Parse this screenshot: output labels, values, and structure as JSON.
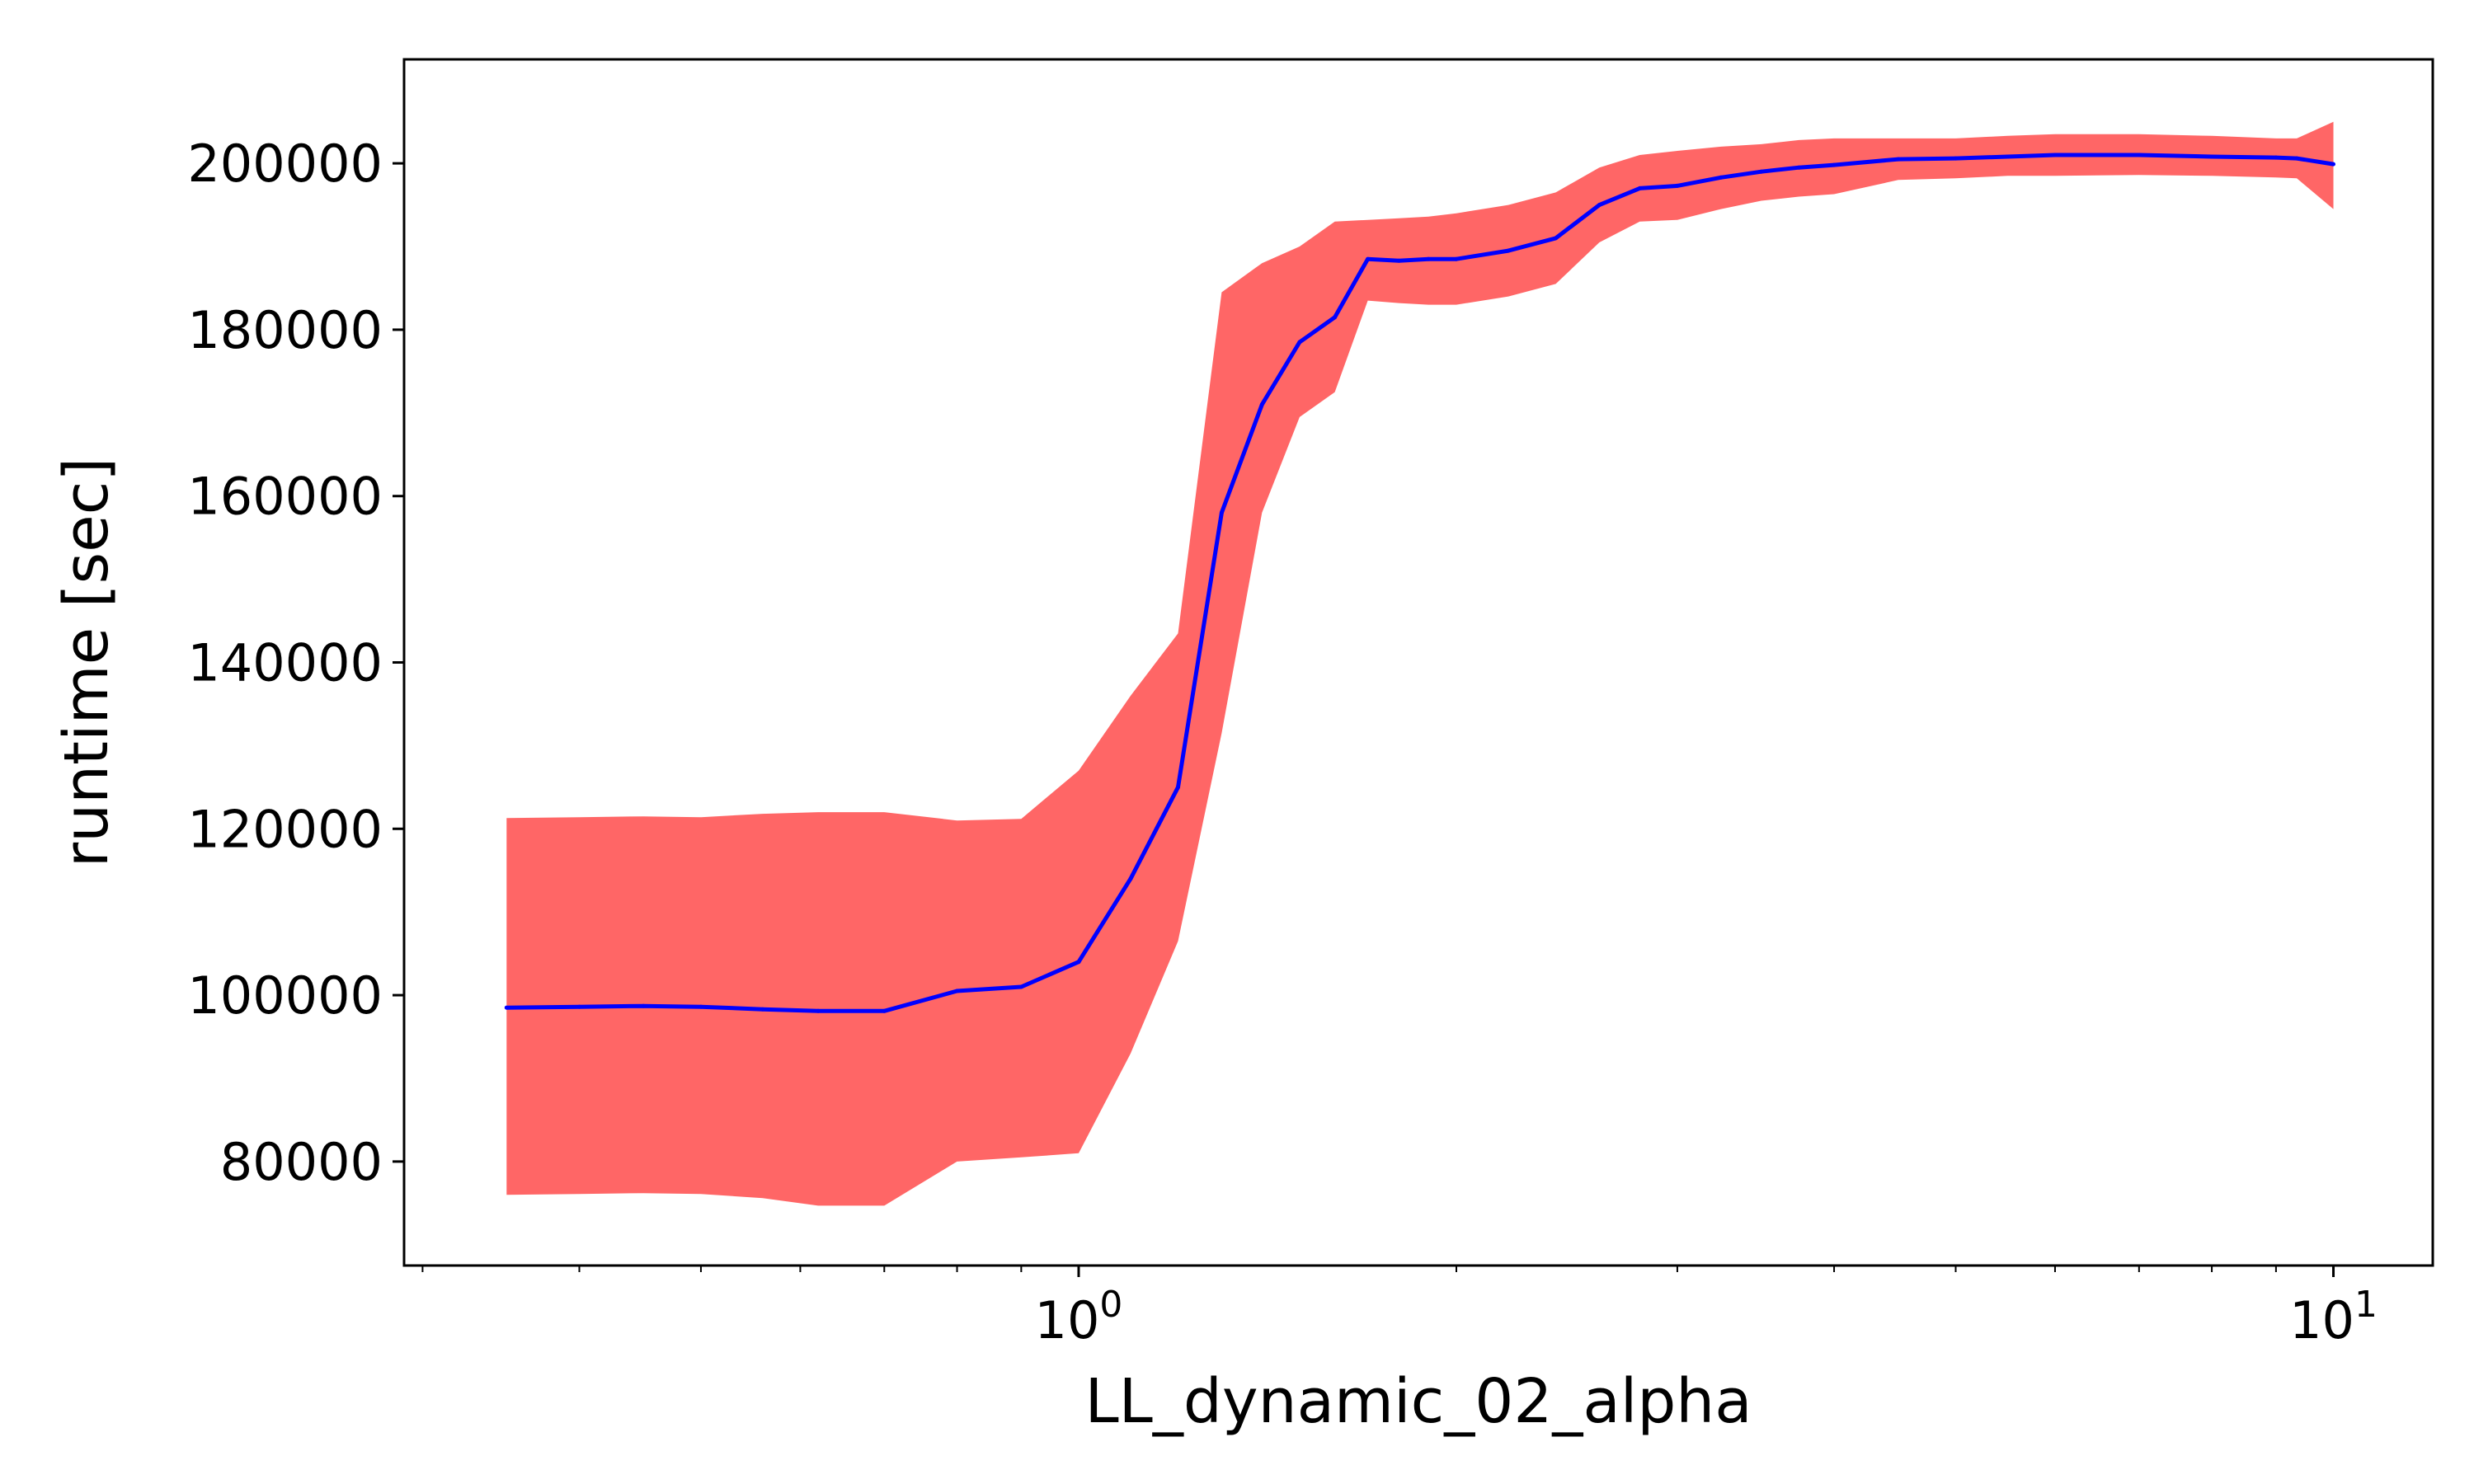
{
  "chart_data": {
    "type": "line",
    "title": "",
    "xlabel": "LL_dynamic_02_alpha",
    "ylabel": "runtime [sec]",
    "xscale": "log",
    "xlim": [
      0.29,
      12
    ],
    "ylim": [
      67500,
      212500
    ],
    "x_ticks": [
      {
        "value": 1,
        "base": "10",
        "exp": "0"
      },
      {
        "value": 10,
        "base": "10",
        "exp": "1"
      }
    ],
    "y_ticks": [
      {
        "value": 80000,
        "label": "80000"
      },
      {
        "value": 100000,
        "label": "100000"
      },
      {
        "value": 120000,
        "label": "120000"
      },
      {
        "value": 140000,
        "label": "140000"
      },
      {
        "value": 160000,
        "label": "160000"
      },
      {
        "value": 180000,
        "label": "180000"
      },
      {
        "value": 200000,
        "label": "200000"
      }
    ],
    "grid": false,
    "series": [
      {
        "color": "#0000ff",
        "band_color": "#ff6666",
        "x": [
          0.35,
          0.4,
          0.45,
          0.5,
          0.56,
          0.62,
          0.7,
          0.8,
          0.9,
          1.0,
          1.1,
          1.2,
          1.3,
          1.4,
          1.5,
          1.6,
          1.7,
          1.8,
          1.9,
          2.0,
          2.2,
          2.4,
          2.6,
          2.8,
          3.0,
          3.25,
          3.5,
          3.75,
          4.0,
          4.5,
          5.0,
          5.5,
          6.0,
          7.0,
          8.0,
          9.0,
          9.35,
          10.0
        ],
        "y": [
          98500,
          98600,
          98700,
          98600,
          98300,
          98100,
          98100,
          100500,
          101000,
          104000,
          114000,
          125000,
          158000,
          171000,
          178500,
          181500,
          188500,
          188300,
          188500,
          188500,
          189500,
          191000,
          195000,
          197000,
          197300,
          198300,
          199000,
          199500,
          199800,
          200500,
          200600,
          200800,
          201000,
          201000,
          200800,
          200700,
          200600,
          199900
        ],
        "upper": [
          121300,
          121400,
          121500,
          121400,
          121800,
          122000,
          122000,
          121000,
          121200,
          127000,
          136000,
          143500,
          184500,
          188000,
          190000,
          193000,
          193200,
          193400,
          193600,
          194000,
          195000,
          196500,
          199500,
          201000,
          201500,
          202000,
          202300,
          202800,
          203000,
          203000,
          203000,
          203300,
          203500,
          203500,
          203300,
          203000,
          203000,
          205000
        ],
        "lower": [
          76000,
          76100,
          76200,
          76100,
          75600,
          74700,
          74700,
          80000,
          80500,
          81000,
          93000,
          106500,
          131500,
          158000,
          169500,
          172500,
          183500,
          183200,
          183000,
          183000,
          184000,
          185500,
          190500,
          193000,
          193200,
          194500,
          195500,
          196000,
          196300,
          198000,
          198200,
          198500,
          198500,
          198600,
          198500,
          198300,
          198200,
          194500
        ]
      }
    ]
  }
}
